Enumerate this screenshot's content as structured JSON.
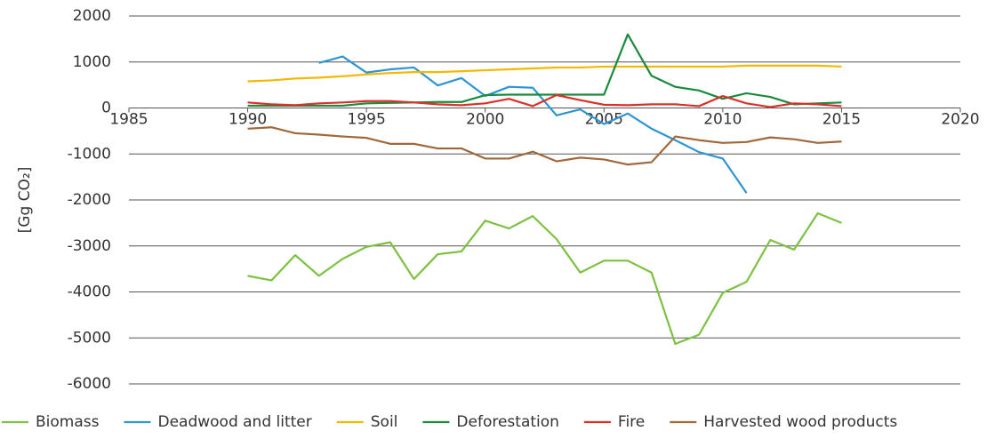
{
  "chart_data": {
    "type": "line",
    "y_label": "[Gg CO₂]",
    "x": [
      1990,
      1991,
      1992,
      1993,
      1994,
      1995,
      1996,
      1997,
      1998,
      1999,
      2000,
      2001,
      2002,
      2003,
      2004,
      2005,
      2006,
      2007,
      2008,
      2009,
      2010,
      2011,
      2012,
      2013,
      2014,
      2015
    ],
    "series": [
      {
        "name": "Biomass",
        "color": "#7dc142",
        "values": [
          -3650,
          -3750,
          -3200,
          -3650,
          -3280,
          -3020,
          -2920,
          -3720,
          -3180,
          -3120,
          -2450,
          -2620,
          -2350,
          -2850,
          -3580,
          -3320,
          -3320,
          -3580,
          -5130,
          -4930,
          -4020,
          -3780,
          -2870,
          -3080,
          -2290,
          -2500
        ]
      },
      {
        "name": "Deadwood and litter",
        "color": "#2e95d3",
        "values": [
          null,
          null,
          null,
          980,
          1120,
          770,
          840,
          880,
          490,
          650,
          260,
          460,
          440,
          -160,
          -30,
          -350,
          -120,
          -450,
          -700,
          -960,
          -1100,
          -1850,
          null,
          null,
          null,
          null
        ]
      },
      {
        "name": "Soil",
        "color": "#f5b800",
        "values": [
          580,
          600,
          640,
          660,
          690,
          730,
          760,
          780,
          780,
          800,
          820,
          840,
          860,
          880,
          880,
          900,
          900,
          900,
          900,
          900,
          900,
          920,
          920,
          920,
          920,
          900
        ]
      },
      {
        "name": "Deforestation",
        "color": "#1a8a3e",
        "values": [
          50,
          50,
          50,
          50,
          50,
          100,
          110,
          120,
          130,
          130,
          280,
          290,
          290,
          290,
          290,
          290,
          1600,
          700,
          460,
          380,
          200,
          320,
          240,
          80,
          100,
          120
        ]
      },
      {
        "name": "Fire",
        "color": "#d9302a",
        "values": [
          120,
          80,
          60,
          100,
          120,
          150,
          150,
          120,
          80,
          60,
          100,
          200,
          40,
          280,
          170,
          70,
          60,
          80,
          80,
          40,
          260,
          100,
          20,
          100,
          80,
          40
        ]
      },
      {
        "name": "Harvested wood products",
        "color": "#a0683a",
        "values": [
          -450,
          -420,
          -550,
          -580,
          -620,
          -650,
          -780,
          -780,
          -880,
          -880,
          -1100,
          -1100,
          -950,
          -1160,
          -1080,
          -1120,
          -1230,
          -1180,
          -620,
          -700,
          -760,
          -740,
          -640,
          -680,
          -760,
          -730
        ]
      }
    ],
    "xlim": [
      1985,
      2020
    ],
    "xticks": [
      1985,
      1990,
      1995,
      2000,
      2005,
      2010,
      2015,
      2020
    ],
    "ylim": [
      -6000,
      2000
    ],
    "yticks": [
      2000,
      1000,
      0,
      -1000,
      -2000,
      -3000,
      -4000,
      -5000,
      -6000
    ],
    "grid": true,
    "legend": "bottom"
  }
}
